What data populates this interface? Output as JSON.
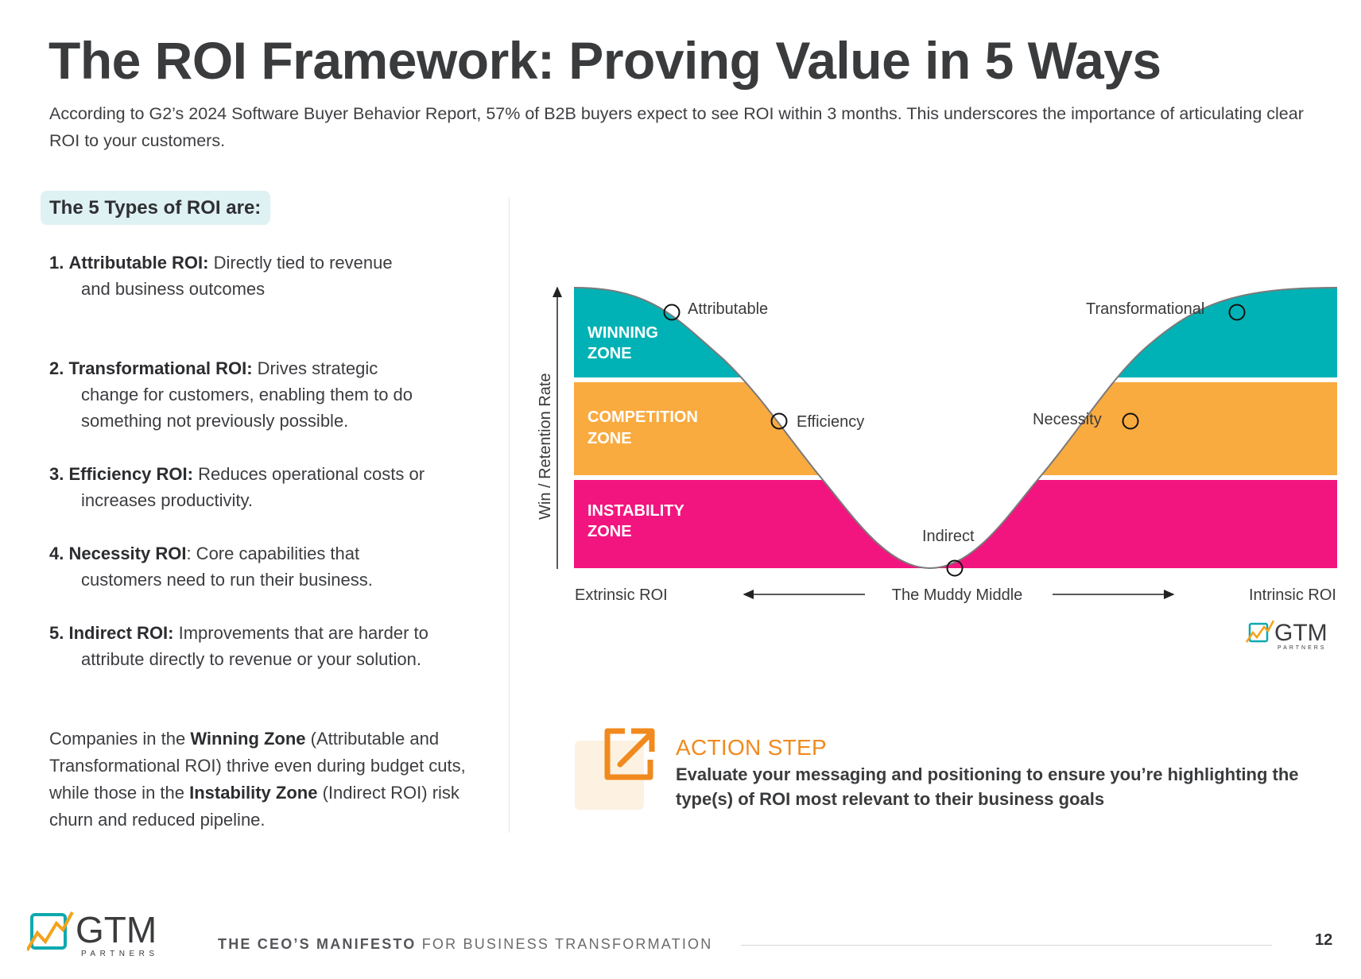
{
  "header": {
    "title": "The ROI Framework: Proving Value in 5 Ways",
    "intro": "According to G2’s 2024 Software Buyer Behavior Report, 57% of B2B buyers expect to see ROI within 3 months. This underscores the importance of articulating clear ROI to your customers."
  },
  "types_heading": "The 5 Types of ROI are:",
  "roi_types": [
    {
      "num": "1.",
      "label": "Attributable ROI:",
      "first": " Directly tied to revenue",
      "rest": "and business outcomes"
    },
    {
      "num": "2.",
      "label": "Transformational ROI:",
      "first": " Drives strategic",
      "rest": "change for customers, enabling them to do something not previously possible."
    },
    {
      "num": "3.",
      "label": "Efficiency ROI:",
      "first": " Reduces operational costs or",
      "rest": "increases productivity."
    },
    {
      "num": "4.",
      "label": "Necessity ROI",
      "first": ": Core capabilities that",
      "rest": "customers need to run their business."
    },
    {
      "num": "5.",
      "label": "Indirect ROI:",
      "first": " Improvements that are harder to",
      "rest": "attribute directly to revenue or your solution."
    }
  ],
  "zones_paragraph": {
    "p1": "Companies in the ",
    "b1": "Winning Zone",
    "p2": " (Attributable and Transformational ROI) thrive even during budget cuts, while those in the ",
    "b2": "Instability Zone",
    "p3": " (Indirect ROI) risk churn and reduced pipeline."
  },
  "chart": {
    "y_axis_label": "Win / Retention Rate",
    "zones": [
      {
        "line1": "WINNING",
        "line2": "ZONE",
        "color": "#00b2b5"
      },
      {
        "line1": "COMPETITION",
        "line2": "ZONE",
        "color": "#f9ab40"
      },
      {
        "line1": "INSTABILITY",
        "line2": "ZONE",
        "color": "#f2157f"
      }
    ],
    "points": {
      "attributable": "Attributable",
      "efficiency": "Efficiency",
      "indirect": "Indirect",
      "necessity": "Necessity",
      "transformational": "Transformational"
    },
    "x_left": "Extrinsic ROI",
    "x_middle": "The Muddy Middle",
    "x_right": "Intrinsic ROI",
    "logo_text": "GTM",
    "logo_sub": "PARTNERS"
  },
  "action": {
    "title": "ACTION STEP",
    "text": "Evaluate your messaging and positioning to ensure you’re highlighting the type(s) of ROI most relevant to their business goals",
    "accent": "#f08a1e",
    "icon": "external-link-icon"
  },
  "footer": {
    "logo_text": "GTM",
    "logo_sub": "PARTNERS",
    "bold": "THE CEO’S MANIFESTO",
    "rest": " FOR BUSINESS TRANSFORMATION",
    "page": "12"
  }
}
